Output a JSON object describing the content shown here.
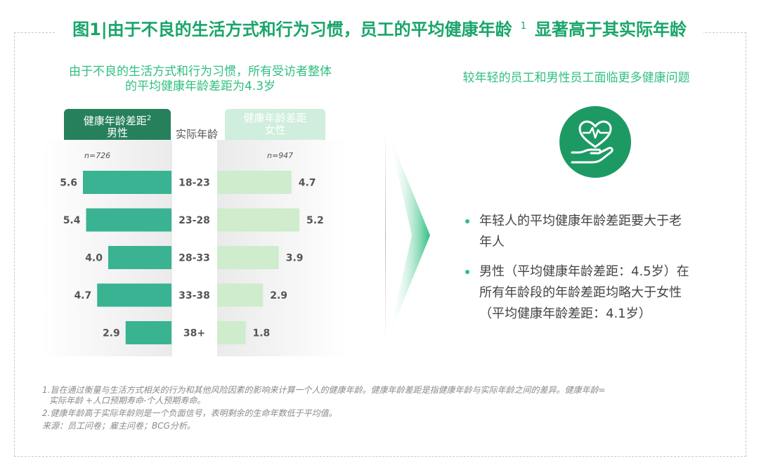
{
  "title": {
    "main": "图1|由于不良的生活方式和行为习惯，员工的平均健康年龄",
    "sup": "1",
    "tail": "显著高于其实际年龄"
  },
  "left_subtitle": {
    "line1": "由于不良的生活方式和行为习惯，所有受访者整体",
    "line2": "的平均健康年龄差距为4.3岁"
  },
  "right_subtitle": "较年轻的员工和男性员工面临更多健康问题",
  "headers": {
    "male": {
      "line1": "健康年龄差距",
      "sup": "2",
      "line2": "男性"
    },
    "middle": "实际年龄",
    "female": {
      "line1": "健康年龄差距",
      "line2": "女性"
    }
  },
  "chart_data": {
    "type": "bar",
    "orientation": "horizontal-butterfly",
    "categories": [
      "18-23",
      "23-28",
      "28-33",
      "33-38",
      "38+"
    ],
    "series": [
      {
        "name": "男性",
        "n": "n=726",
        "values": [
          5.6,
          5.4,
          4.0,
          4.7,
          2.9
        ],
        "color": "#3ab393"
      },
      {
        "name": "女性",
        "n": "n=947",
        "values": [
          4.7,
          5.2,
          3.9,
          2.9,
          1.8
        ],
        "color": "#cfeccd"
      }
    ],
    "value_labels": {
      "male": [
        "5.6",
        "5.4",
        "4.0",
        "4.7",
        "2.9"
      ],
      "female": [
        "4.7",
        "5.2",
        "3.9",
        "2.9",
        "1.8"
      ]
    },
    "xlim": [
      0,
      6
    ]
  },
  "icon": {
    "name": "heart-in-hand-icon",
    "color": "#1d9a64"
  },
  "bullets": [
    {
      "line1": "年轻人的平均健康年龄差距要大于老",
      "line2": "年人"
    },
    {
      "line1": "男性（平均健康年龄差距：4.5岁）在",
      "line2": "所有年龄段的年龄差距均略大于女性",
      "line3": "（平均健康年龄差距：4.1岁）"
    }
  ],
  "notes": {
    "n1a": "1.旨在通过衡量与生活方式相关的行为和其他风险因素的影响来计算一个人的健康年龄。健康年龄差距是指健康年龄与实际年龄之间的差异。健康年龄=",
    "n1b": "实际年龄 +人口预期寿命-个人预期寿命。",
    "n2": "2.健康年龄高于实际年龄则是一个负面信号，表明剩余的生命年数低于平均值。",
    "source": "来源：员工问卷；雇主问卷；BCG分析。"
  },
  "colors": {
    "accent": "#1aa56b",
    "male_bar": "#3ab393",
    "female_bar": "#cfeccd",
    "male_header": "#26805c"
  }
}
